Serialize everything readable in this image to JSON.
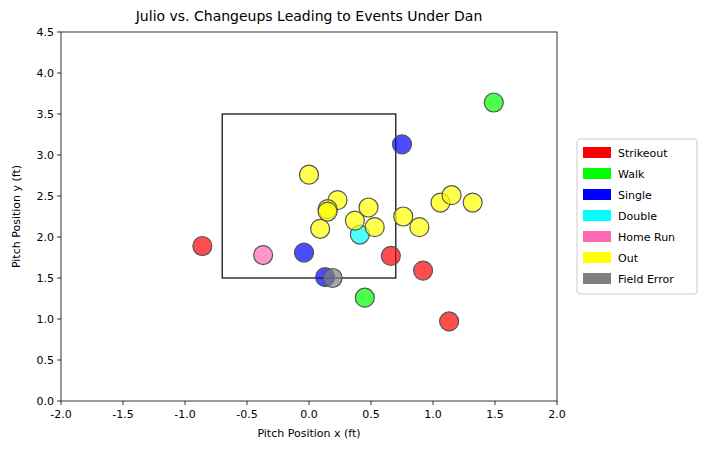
{
  "chart_data": {
    "type": "scatter",
    "title": "Julio vs. Changeups Leading to Events Under Dan",
    "x_label": "Pitch Position x (ft)",
    "y_label": "Pitch Position y (ft)",
    "xlim": [
      -2,
      2
    ],
    "ylim": [
      0,
      4.5
    ],
    "xticks": [
      {
        "value": -2,
        "label": "-2.0"
      },
      {
        "value": -1.5,
        "label": "-1.5"
      },
      {
        "value": -1,
        "label": "-1.0"
      },
      {
        "value": -0.5,
        "label": "-0.5"
      },
      {
        "value": 0,
        "label": "0.0"
      },
      {
        "value": 0.5,
        "label": "0.5"
      },
      {
        "value": 1,
        "label": "1.0"
      },
      {
        "value": 1.5,
        "label": "1.5"
      },
      {
        "value": 2,
        "label": "2.0"
      }
    ],
    "yticks": [
      {
        "value": 0,
        "label": "0.0"
      },
      {
        "value": 0.5,
        "label": "0.5"
      },
      {
        "value": 1,
        "label": "1.0"
      },
      {
        "value": 1.5,
        "label": "1.5"
      },
      {
        "value": 2,
        "label": "2.0"
      },
      {
        "value": 2.5,
        "label": "2.5"
      },
      {
        "value": 3,
        "label": "3.0"
      },
      {
        "value": 3.5,
        "label": "3.5"
      },
      {
        "value": 4,
        "label": "4.0"
      },
      {
        "value": 4.5,
        "label": "4.5"
      }
    ],
    "zone": {
      "x": [
        -0.7,
        0.7
      ],
      "y": [
        1.5,
        3.5
      ]
    },
    "legend": "right",
    "grid": false,
    "series": [
      {
        "name": "Strikeout",
        "color": "#ff0000",
        "x": [
          -0.86,
          0.66,
          0.92,
          1.13
        ],
        "y": [
          1.89,
          1.77,
          1.59,
          0.97
        ]
      },
      {
        "name": "Walk",
        "color": "#00ff00",
        "x": [
          1.49,
          0.45
        ],
        "y": [
          3.64,
          1.26
        ]
      },
      {
        "name": "Single",
        "color": "#0000ff",
        "x": [
          0.75,
          -0.04,
          0.13
        ],
        "y": [
          3.13,
          1.81,
          1.51
        ]
      },
      {
        "name": "Double",
        "color": "#00ffff",
        "x": [
          0.41
        ],
        "y": [
          2.03
        ]
      },
      {
        "name": "Home Run",
        "color": "#ff69b4",
        "x": [
          -0.37
        ],
        "y": [
          1.78
        ]
      },
      {
        "name": "Out",
        "color": "#ffff00",
        "x": [
          0.0,
          0.23,
          0.15,
          0.15,
          0.09,
          0.37,
          0.48,
          0.53,
          0.76,
          0.89,
          1.06,
          1.15,
          1.32
        ],
        "y": [
          2.76,
          2.45,
          2.34,
          2.31,
          2.1,
          2.2,
          2.36,
          2.12,
          2.25,
          2.12,
          2.42,
          2.51,
          2.42
        ]
      },
      {
        "name": "Field Error",
        "color": "#808080",
        "x": [
          0.19
        ],
        "y": [
          1.5
        ]
      }
    ]
  }
}
